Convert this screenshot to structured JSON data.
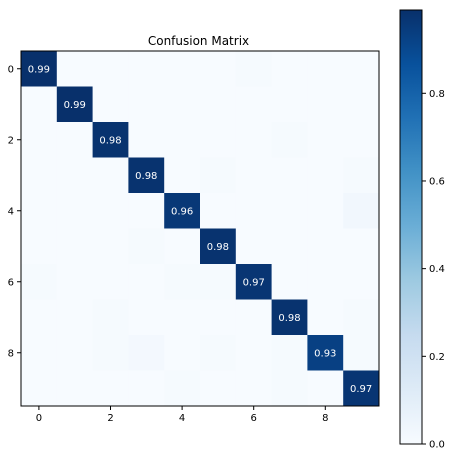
{
  "chart_data": {
    "type": "heatmap",
    "title": "Confusion Matrix",
    "x_tick_labels": [
      "0",
      "2",
      "4",
      "6",
      "8"
    ],
    "y_tick_labels": [
      "0",
      "2",
      "4",
      "6",
      "8"
    ],
    "tick_positions": [
      0,
      2,
      4,
      6,
      8
    ],
    "matrix": [
      [
        0.99,
        0.0,
        0.0,
        0.0,
        0.0,
        0.0,
        0.01,
        0.0,
        0.0,
        0.0
      ],
      [
        0.0,
        0.99,
        0.0,
        0.0,
        0.0,
        0.0,
        0.0,
        0.0,
        0.0,
        0.0
      ],
      [
        0.0,
        0.0,
        0.98,
        0.0,
        0.0,
        0.0,
        0.0,
        0.01,
        0.0,
        0.0
      ],
      [
        0.0,
        0.0,
        0.0,
        0.98,
        0.0,
        0.01,
        0.0,
        0.0,
        0.0,
        0.01
      ],
      [
        0.0,
        0.0,
        0.0,
        0.0,
        0.96,
        0.0,
        0.0,
        0.0,
        0.0,
        0.03
      ],
      [
        0.0,
        0.0,
        0.0,
        0.01,
        0.0,
        0.98,
        0.0,
        0.0,
        0.0,
        0.0
      ],
      [
        0.01,
        0.0,
        0.0,
        0.0,
        0.01,
        0.01,
        0.97,
        0.0,
        0.0,
        0.0
      ],
      [
        0.0,
        0.0,
        0.01,
        0.0,
        0.0,
        0.0,
        0.0,
        0.98,
        0.0,
        0.01
      ],
      [
        0.0,
        0.0,
        0.01,
        0.02,
        0.0,
        0.01,
        0.0,
        0.01,
        0.93,
        0.01
      ],
      [
        0.0,
        0.0,
        0.0,
        0.0,
        0.01,
        0.0,
        0.0,
        0.01,
        0.0,
        0.97
      ]
    ],
    "colorbar": {
      "colormap": "Blues",
      "range": [
        0,
        0.99
      ],
      "ticks": [
        0.0,
        0.2,
        0.4,
        0.6,
        0.8
      ],
      "tick_labels": [
        "0.0",
        "0.2",
        "0.4",
        "0.6",
        "0.8"
      ]
    }
  }
}
